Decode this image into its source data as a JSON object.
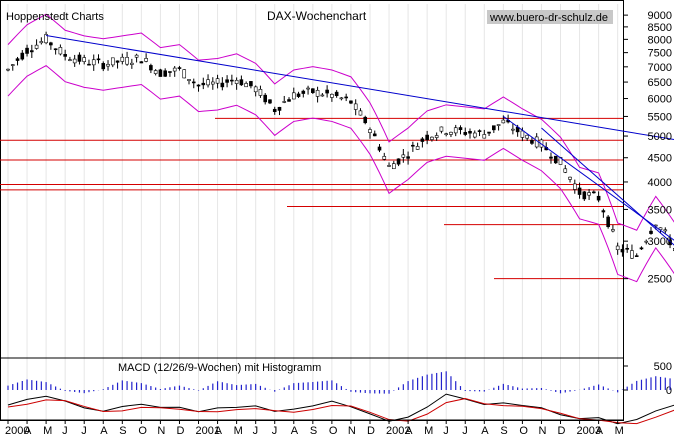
{
  "chart_data": {
    "type": "candlestick",
    "title": "DAX-Wochenchart",
    "source_label": "Hoppenstedt Charts",
    "website": "www.buero-dr-schulz.de",
    "y_scale": "log",
    "ylim": [
      1700,
      9500
    ],
    "y_ticks": [
      "9000",
      "8500",
      "8000",
      "7500",
      "7000",
      "6500",
      "6000",
      "5500",
      "5000",
      "4500",
      "4000",
      "3500",
      "3000",
      "2500"
    ],
    "x_labels": [
      "2000",
      "A",
      "M",
      "J",
      "J",
      "A",
      "S",
      "O",
      "N",
      "D",
      "2001",
      "A",
      "M",
      "J",
      "J",
      "A",
      "S",
      "O",
      "N",
      "D",
      "2002",
      "A",
      "M",
      "J",
      "J",
      "A",
      "S",
      "O",
      "N",
      "D",
      "2003",
      "A",
      "M"
    ],
    "x_range": [
      "2000-01",
      "2003-05"
    ],
    "close_series": [
      {
        "date": "2000-01",
        "value": 6900
      },
      {
        "date": "2000-02",
        "value": 7600
      },
      {
        "date": "2000-03",
        "value": 8000
      },
      {
        "date": "2000-04",
        "value": 7400
      },
      {
        "date": "2000-05",
        "value": 7200
      },
      {
        "date": "2000-06",
        "value": 7100
      },
      {
        "date": "2000-07",
        "value": 7200
      },
      {
        "date": "2000-08",
        "value": 7300
      },
      {
        "date": "2000-09",
        "value": 6800
      },
      {
        "date": "2000-10",
        "value": 6900
      },
      {
        "date": "2000-11",
        "value": 6400
      },
      {
        "date": "2000-12",
        "value": 6450
      },
      {
        "date": "2001-01",
        "value": 6600
      },
      {
        "date": "2001-02",
        "value": 6300
      },
      {
        "date": "2001-03",
        "value": 5700
      },
      {
        "date": "2001-04",
        "value": 6100
      },
      {
        "date": "2001-05",
        "value": 6200
      },
      {
        "date": "2001-06",
        "value": 6100
      },
      {
        "date": "2001-07",
        "value": 5900
      },
      {
        "date": "2001-08",
        "value": 5200
      },
      {
        "date": "2001-09",
        "value": 4300
      },
      {
        "date": "2001-10",
        "value": 4600
      },
      {
        "date": "2001-11",
        "value": 5000
      },
      {
        "date": "2001-12",
        "value": 5150
      },
      {
        "date": "2002-01",
        "value": 5100
      },
      {
        "date": "2002-02",
        "value": 5050
      },
      {
        "date": "2002-03",
        "value": 5350
      },
      {
        "date": "2002-04",
        "value": 5050
      },
      {
        "date": "2002-05",
        "value": 4800
      },
      {
        "date": "2002-06",
        "value": 4400
      },
      {
        "date": "2002-07",
        "value": 3800
      },
      {
        "date": "2002-08",
        "value": 3700
      },
      {
        "date": "2002-09",
        "value": 2900
      },
      {
        "date": "2002-10",
        "value": 2800
      },
      {
        "date": "2002-11",
        "value": 3300
      },
      {
        "date": "2002-12",
        "value": 2900
      },
      {
        "date": "2003-01",
        "value": 2700
      },
      {
        "date": "2003-02",
        "value": 2550
      },
      {
        "date": "2003-03",
        "value": 2450
      }
    ],
    "horizontal_lines": [
      5450,
      4900,
      4450,
      3950,
      3850,
      3550,
      3250,
      2500
    ],
    "trendlines": [
      {
        "from": {
          "date": "2000-03",
          "value": 8150
        },
        "to": {
          "date": "2003-05",
          "value": 4550
        }
      },
      {
        "from": {
          "date": "2002-03",
          "value": 5500
        },
        "to": {
          "date": "2003-05",
          "value": 2150
        }
      },
      {
        "from": {
          "date": "2002-05",
          "value": 5200
        },
        "to": {
          "date": "2003-05",
          "value": 1950
        }
      }
    ],
    "macd": {
      "label": "MACD (12/26/9-Wochen) mit Histogramm",
      "y_ticks": [
        "500",
        "0"
      ]
    }
  }
}
